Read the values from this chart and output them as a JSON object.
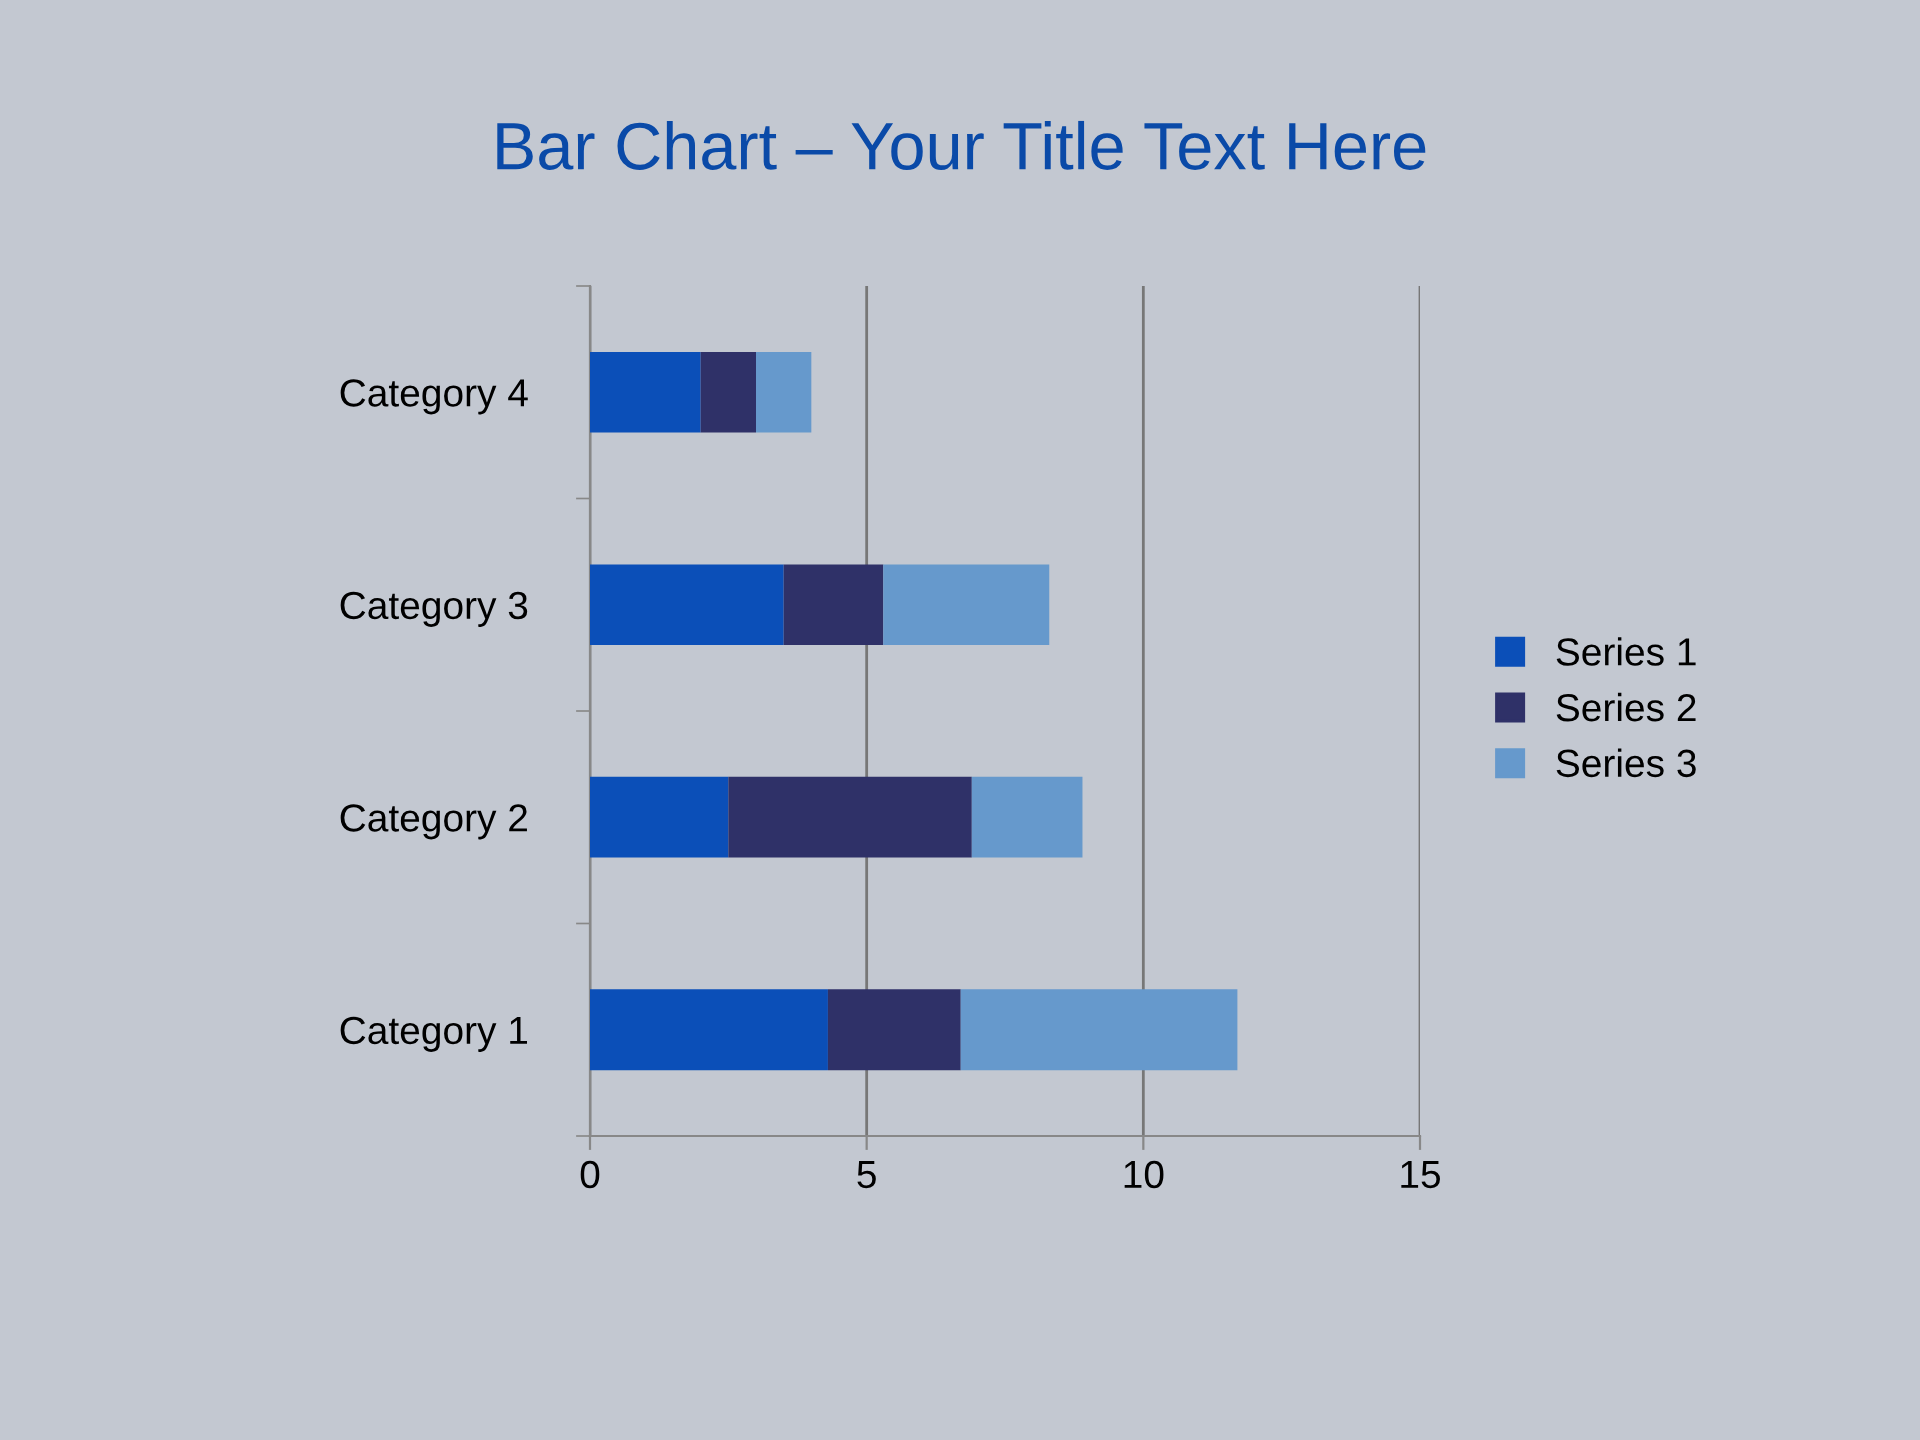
{
  "chart_data": {
    "type": "bar",
    "orientation": "horizontal",
    "stacked": true,
    "title": "Bar Chart – Your Title Text Here",
    "categories": [
      "Category 4",
      "Category 3",
      "Category 2",
      "Category 1"
    ],
    "series": [
      {
        "name": "Series 1",
        "color": "#0b4fb8",
        "values": [
          2,
          3.5,
          2.5,
          4.3
        ]
      },
      {
        "name": "Series 2",
        "color": "#2f3168",
        "values": [
          1,
          1.8,
          4.4,
          2.4
        ]
      },
      {
        "name": "Series 3",
        "color": "#6699cc",
        "values": [
          1,
          3,
          2,
          5
        ]
      }
    ],
    "xlim": [
      0,
      15
    ],
    "xticks": [
      0,
      5,
      10,
      15
    ],
    "grid": "x",
    "legend": "right"
  }
}
